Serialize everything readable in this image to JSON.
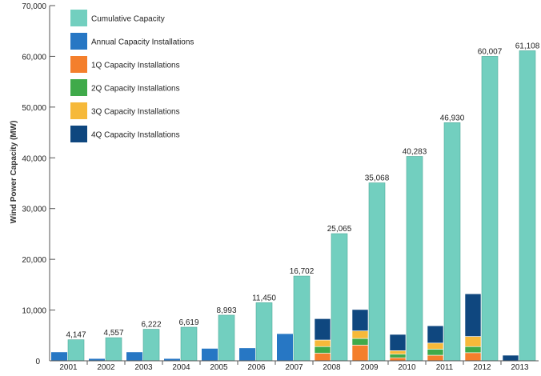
{
  "chart_data": {
    "type": "bar",
    "title": "",
    "xlabel": "",
    "ylabel": "Wind Power Capacity (MW)",
    "ylim": [
      0,
      70000
    ],
    "yticks": [
      0,
      10000,
      20000,
      30000,
      40000,
      50000,
      60000,
      70000
    ],
    "ytick_labels": [
      "0",
      "10,000",
      "20,000",
      "30,000",
      "40,000",
      "50,000",
      "60,000",
      "70,000"
    ],
    "grid": false,
    "legend_position": "top-left",
    "categories": [
      "2001",
      "2002",
      "2003",
      "2004",
      "2005",
      "2006",
      "2007",
      "2008",
      "2009",
      "2010",
      "2011",
      "2012",
      "2013"
    ],
    "series": [
      {
        "name": "Cumulative Capacity",
        "color": "#72cfbf",
        "values": [
          4147,
          4557,
          6222,
          6619,
          8993,
          11450,
          16702,
          25065,
          35068,
          40283,
          46930,
          60007,
          61108
        ],
        "value_labels": [
          "4,147",
          "4,557",
          "6,222",
          "6,619",
          "8,993",
          "11,450",
          "16,702",
          "25,065",
          "35,068",
          "40,283",
          "46,930",
          "60,007",
          "61,108"
        ]
      },
      {
        "name": "Annual Capacity Installations",
        "color": "#2777c4",
        "values": [
          1700,
          400,
          1700,
          400,
          2400,
          2500,
          5300,
          null,
          null,
          null,
          null,
          null,
          null
        ]
      },
      {
        "name": "1Q Capacity Installations",
        "color": "#f47f2c",
        "values": [
          null,
          null,
          null,
          null,
          null,
          null,
          null,
          1500,
          3100,
          600,
          1100,
          1600,
          0
        ]
      },
      {
        "name": "2Q Capacity Installations",
        "color": "#3faa4a",
        "values": [
          null,
          null,
          null,
          null,
          null,
          null,
          null,
          1300,
          1300,
          700,
          1200,
          1200,
          0
        ]
      },
      {
        "name": "3Q Capacity Installations",
        "color": "#f6b93a",
        "values": [
          null,
          null,
          null,
          null,
          null,
          null,
          null,
          1300,
          1500,
          700,
          1200,
          2000,
          0
        ]
      },
      {
        "name": "4Q Capacity Installations",
        "color": "#0f477f",
        "values": [
          null,
          null,
          null,
          null,
          null,
          null,
          null,
          4200,
          4200,
          3200,
          3400,
          8400,
          1100
        ]
      }
    ]
  }
}
